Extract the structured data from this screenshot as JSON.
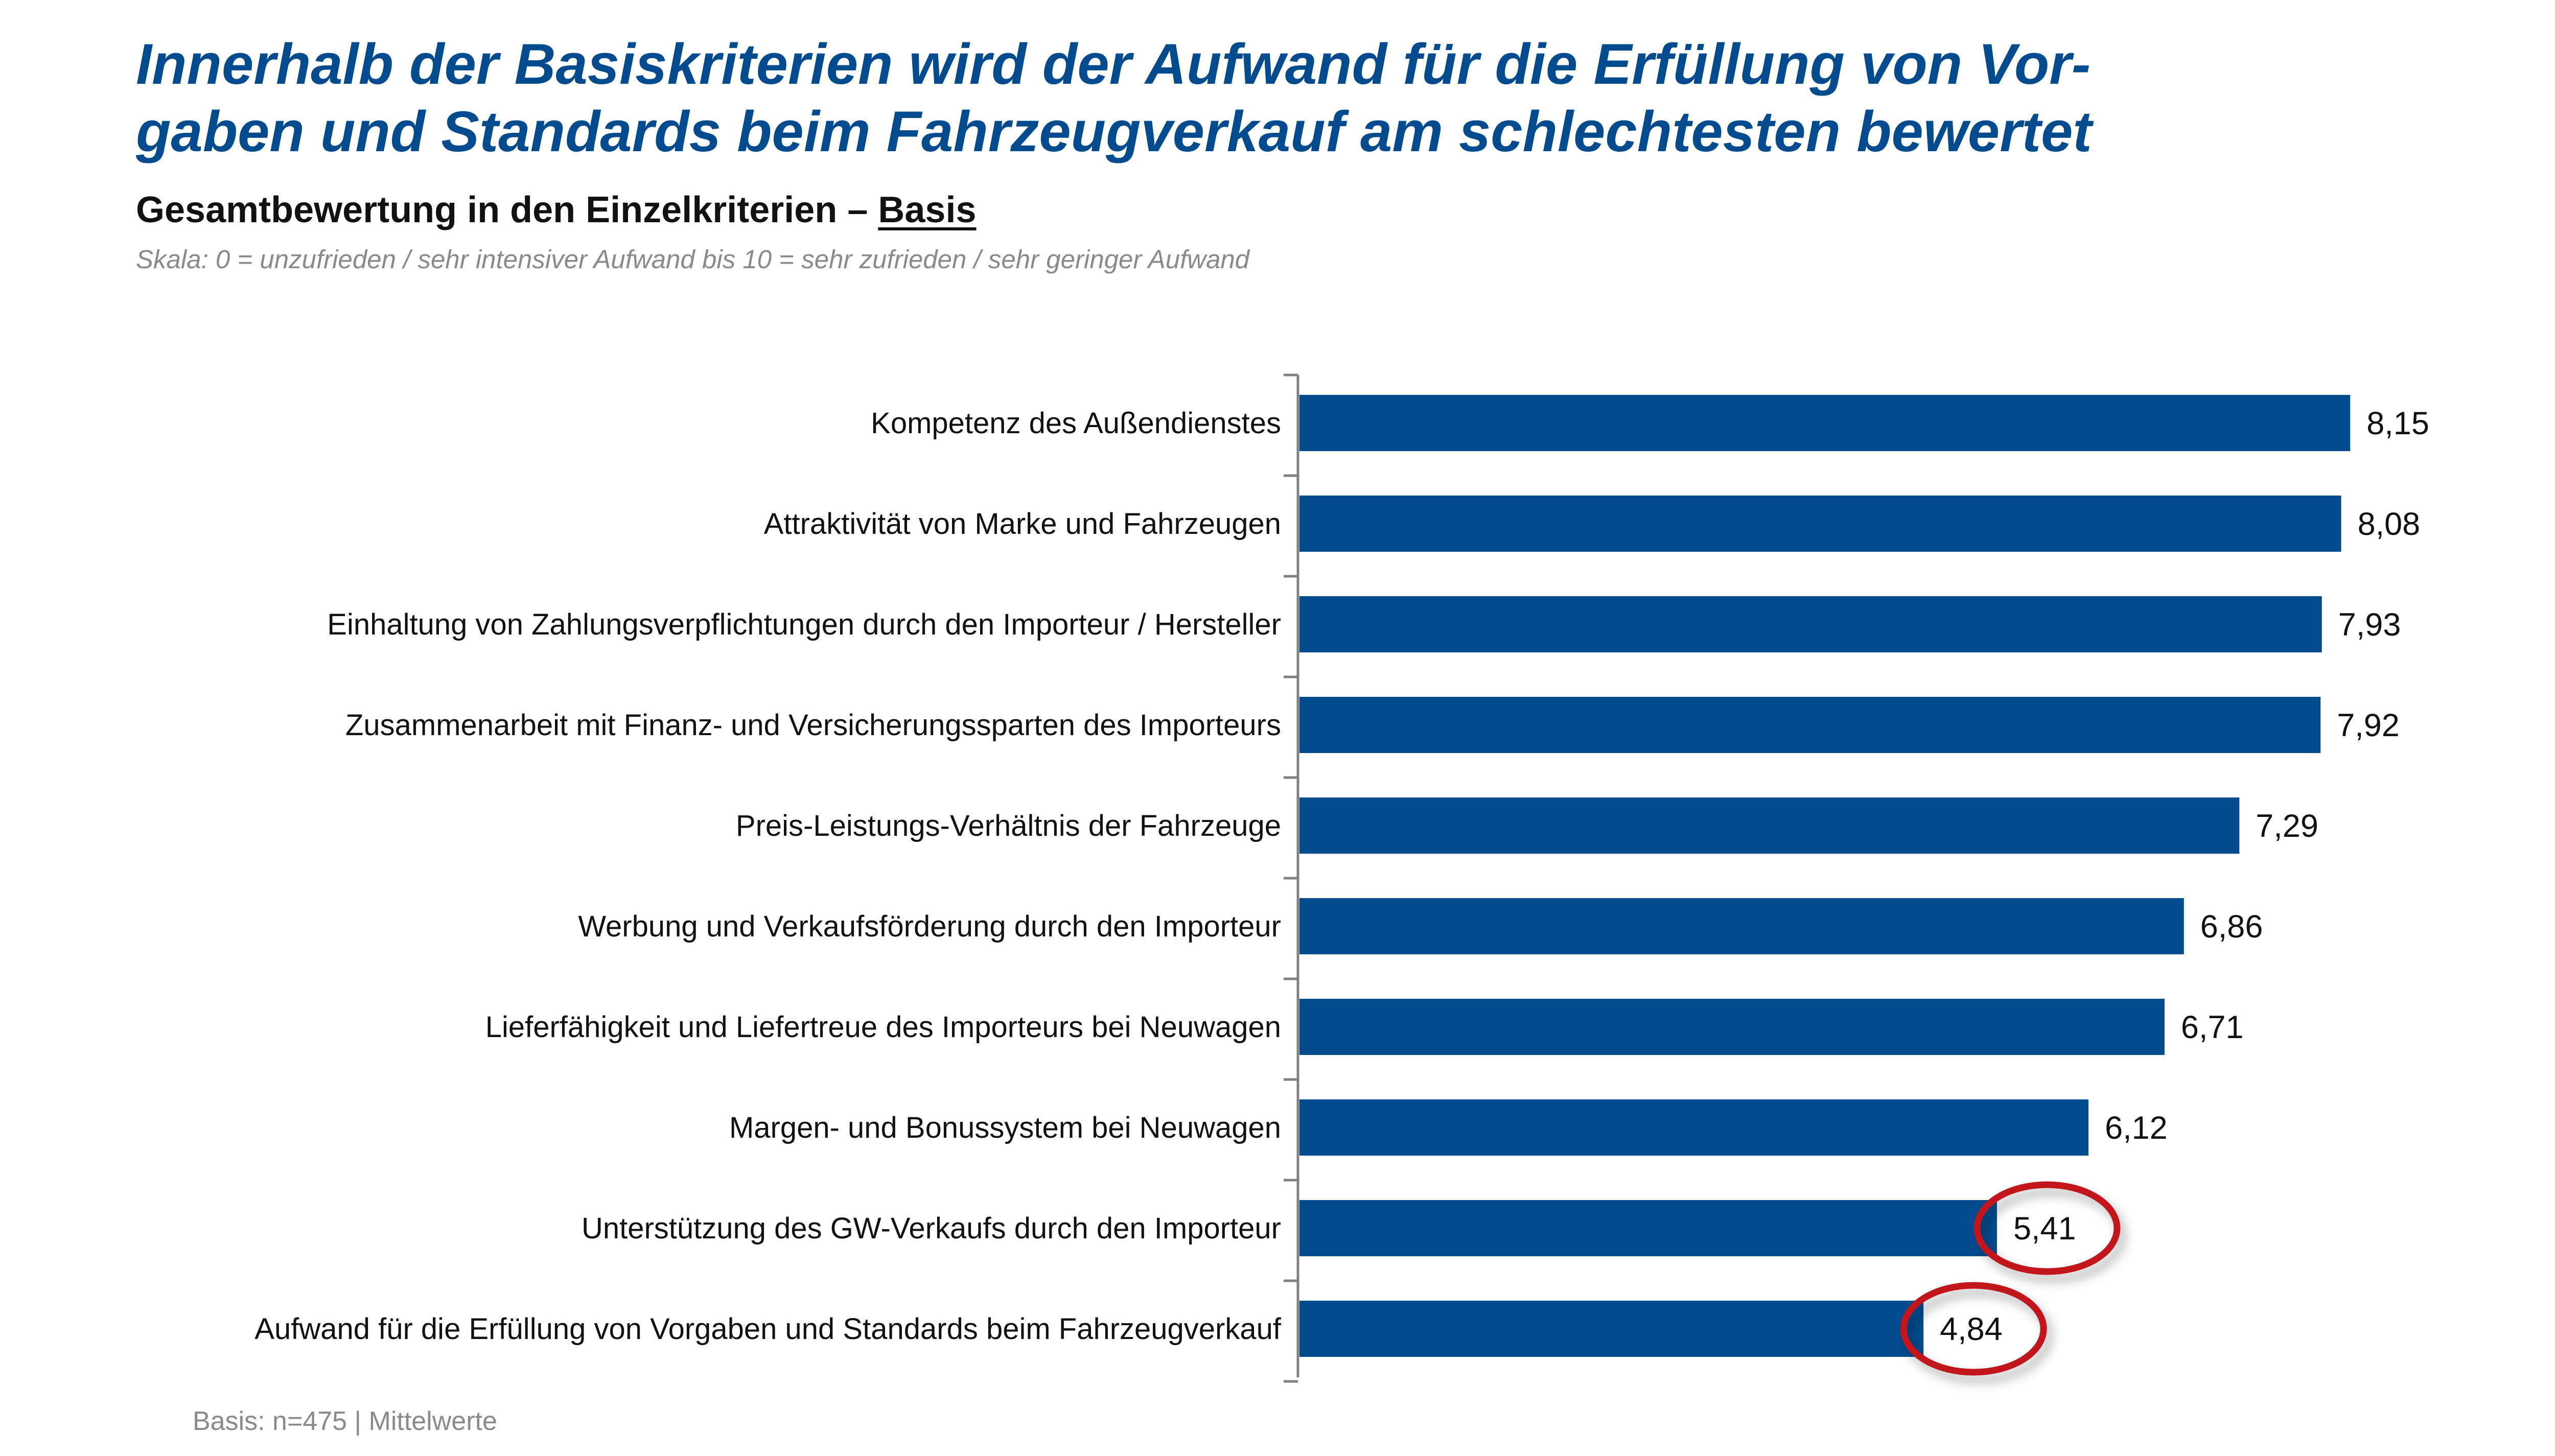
{
  "header": {
    "title_line1": "Innerhalb der Basiskriterien wird der Aufwand für die Erfüllung von Vor-",
    "title_line2": "gaben und Standards beim Fahrzeugverkauf am schlechtesten bewertet",
    "subtitle_prefix": "Gesamtbewertung in den Einzelkriterien – ",
    "subtitle_emphasis": "Basis",
    "scale_note": "Skala: 0 = unzufrieden / sehr intensiver Aufwand bis 10 = sehr zufrieden / sehr geringer Aufwand"
  },
  "footer": "Basis: n=475 | Mittelwerte",
  "colors": {
    "bar": "#024b8e",
    "highlight": "#c0181c",
    "axis": "#808080"
  },
  "chart_data": {
    "type": "bar",
    "orientation": "horizontal",
    "categories": [
      "Kompetenz des Außendienstes",
      "Attraktivität von Marke und Fahrzeugen",
      "Einhaltung von Zahlungsverpflichtungen durch den Importeur / Hersteller",
      "Zusammenarbeit mit Finanz- und Versicherungssparten des Importeurs",
      "Preis-Leistungs-Verhältnis der Fahrzeuge",
      "Werbung und Verkaufsförderung durch den Importeur",
      "Lieferfähigkeit und Liefertreue des Importeurs bei Neuwagen",
      "Margen- und Bonussystem bei Neuwagen",
      "Unterstützung des GW-Verkaufs durch den Importeur",
      "Aufwand für die Erfüllung von Vorgaben und Standards beim Fahrzeugverkauf"
    ],
    "values": [
      8.15,
      8.08,
      7.93,
      7.92,
      7.29,
      6.86,
      6.71,
      6.12,
      5.41,
      4.84
    ],
    "value_labels": [
      "8,15",
      "8,08",
      "7,93",
      "7,92",
      "7,29",
      "6,86",
      "6,71",
      "6,12",
      "5,41",
      "4,84"
    ],
    "highlighted": [
      false,
      false,
      false,
      false,
      false,
      false,
      false,
      false,
      true,
      true
    ],
    "xlim": [
      0,
      10
    ],
    "grid": false,
    "legend": "none"
  }
}
